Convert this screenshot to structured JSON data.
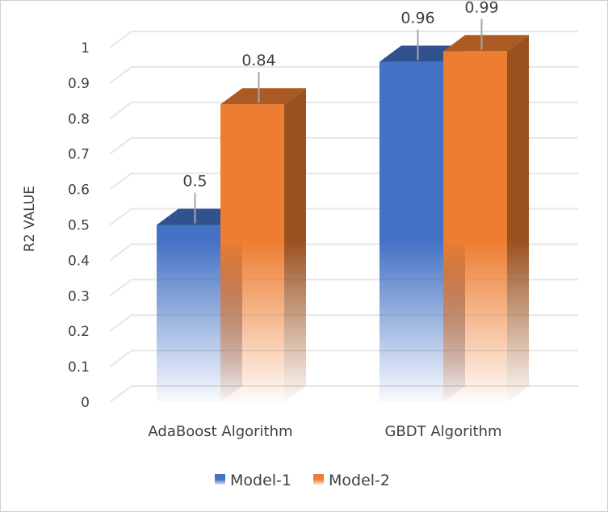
{
  "chart_data": {
    "type": "bar",
    "style": "3d-clustered-column",
    "title": "",
    "xlabel": "",
    "ylabel": "R2 VALUE",
    "ylim": [
      0,
      1
    ],
    "yticks": [
      "0",
      "0.1",
      "0.2",
      "0.3",
      "0.4",
      "0.5",
      "0.6",
      "0.7",
      "0.8",
      "0.9",
      "1"
    ],
    "grid": true,
    "legend_position": "bottom",
    "categories": [
      "AdaBoost Algorithm",
      "GBDT Algorithm"
    ],
    "series": [
      {
        "name": "Model-1",
        "values": [
          0.5,
          0.96
        ],
        "labels": [
          "0.5",
          "0.96"
        ],
        "color": "#4472C4"
      },
      {
        "name": "Model-2",
        "values": [
          0.84,
          0.99
        ],
        "labels": [
          "0.84",
          "0.99"
        ],
        "color": "#ED7D31"
      }
    ]
  }
}
